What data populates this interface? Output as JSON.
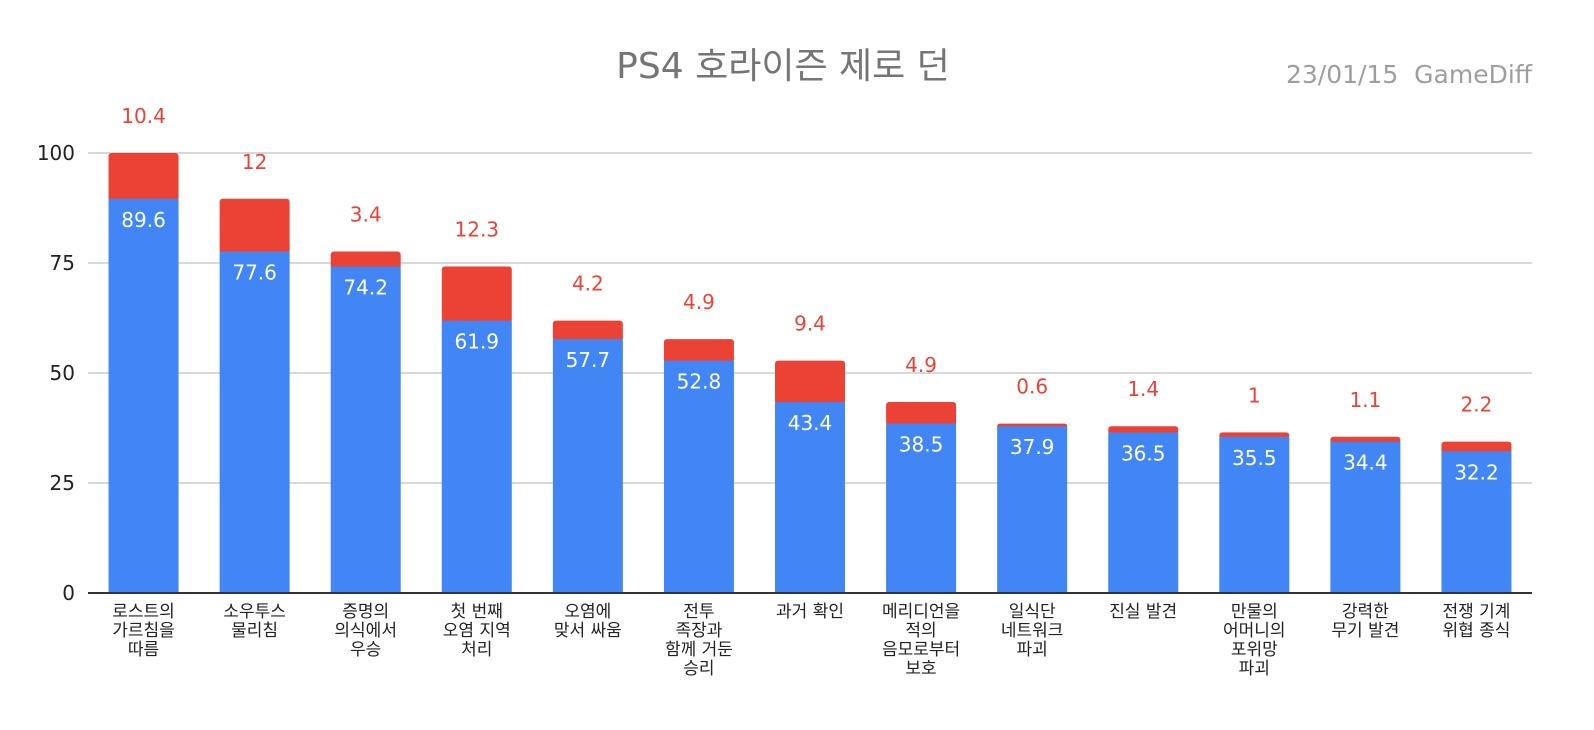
{
  "colors": {
    "series_base": "#4285f4",
    "series_extra": "#ea4335",
    "title": "#757575",
    "subtitle": "#9e9e9e",
    "grid": "#cccccc",
    "axis": "#333333",
    "label_inner": "#ffffff",
    "label_top": "#ea4335"
  },
  "chart_data": {
    "type": "bar",
    "stacked": true,
    "title": "PS4 호라이즌 제로 던",
    "subtitle": "23/01/15  GameDiff",
    "xlabel": "",
    "ylabel": "",
    "ylim": [
      0,
      100
    ],
    "yticks": [
      0,
      25,
      50,
      75,
      100
    ],
    "grid": true,
    "categories": [
      [
        "로스트의",
        "가르침을",
        "따름"
      ],
      [
        "소우투스",
        "물리침"
      ],
      [
        "증명의",
        "의식에서",
        "우승"
      ],
      [
        "첫 번째",
        "오염 지역",
        "처리"
      ],
      [
        "오염에",
        "맞서 싸움"
      ],
      [
        "전투",
        "족장과",
        "함께 거둔",
        "승리"
      ],
      [
        "과거 확인"
      ],
      [
        "메리디언을",
        "적의",
        "음모로부터",
        "보호"
      ],
      [
        "일식단",
        "네트워크",
        "파괴"
      ],
      [
        "진실 발견"
      ],
      [
        "만물의",
        "어머니의",
        "포위망",
        "파괴"
      ],
      [
        "강력한",
        "무기 발견"
      ],
      [
        "전쟁 기계",
        "위협 종식"
      ]
    ],
    "series": [
      {
        "values": [
          89.6,
          77.6,
          74.2,
          61.9,
          57.7,
          52.8,
          43.4,
          38.5,
          37.9,
          36.5,
          35.5,
          34.4,
          32.2
        ]
      },
      {
        "values": [
          10.4,
          12,
          3.4,
          12.3,
          4.2,
          4.9,
          9.4,
          4.9,
          0.6,
          1.4,
          1,
          1.1,
          2.2
        ]
      }
    ],
    "base_labels": [
      "89.6",
      "77.6",
      "74.2",
      "61.9",
      "57.7",
      "52.8",
      "43.4",
      "38.5",
      "37.9",
      "36.5",
      "35.5",
      "34.4",
      "32.2"
    ],
    "top_labels": [
      "10.4",
      "12",
      "3.4",
      "12.3",
      "4.2",
      "4.9",
      "9.4",
      "4.9",
      "0.6",
      "1.4",
      "1",
      "1.1",
      "2.2"
    ]
  }
}
